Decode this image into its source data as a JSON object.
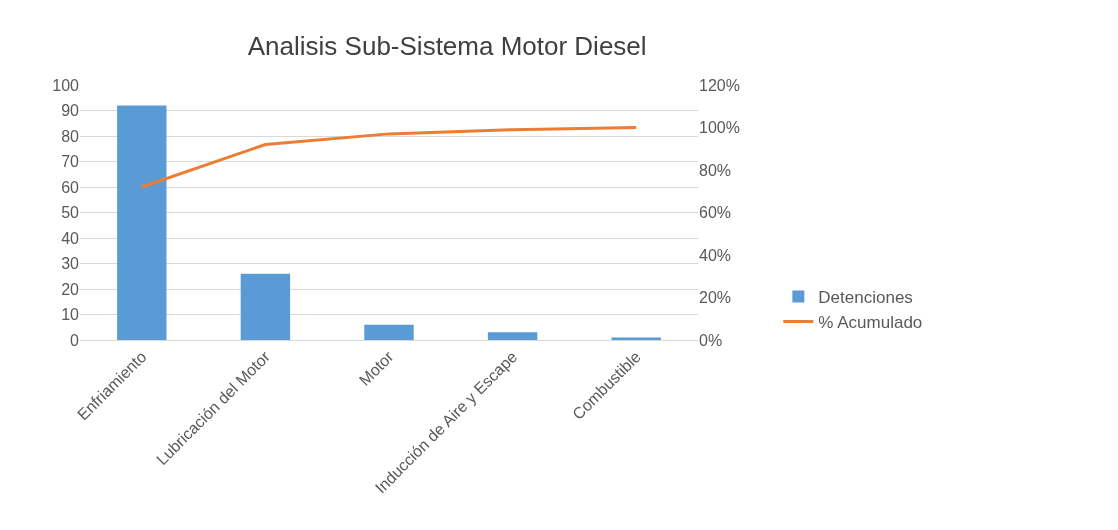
{
  "chart_data": {
    "type": "bar",
    "title": "Analisis Sub-Sistema Motor Diesel",
    "categories": [
      "Enfriamiento",
      "Lubricación del Motor",
      "Motor",
      "Inducción de Aire y Escape",
      "Combustible"
    ],
    "series": [
      {
        "name": "Detenciones",
        "color": "#5b9bd5",
        "values": [
          92,
          26,
          6,
          3,
          1
        ]
      },
      {
        "name": "% Acumulado",
        "type": "line",
        "axis": "y2",
        "color": "#ed7d31",
        "values": [
          72,
          92,
          97,
          99,
          100
        ]
      }
    ],
    "ylim": [
      0,
      100
    ],
    "yticks": [
      0,
      10,
      20,
      30,
      40,
      50,
      60,
      70,
      80,
      90,
      100
    ],
    "y2lim": [
      0,
      120
    ],
    "y2ticks": [
      {
        "value": 0,
        "label": "0%"
      },
      {
        "value": 20,
        "label": "20%"
      },
      {
        "value": 40,
        "label": "40%"
      },
      {
        "value": 60,
        "label": "60%"
      },
      {
        "value": 80,
        "label": "80%"
      },
      {
        "value": 100,
        "label": "100%"
      },
      {
        "value": 120,
        "label": "120%"
      }
    ],
    "grid": "y",
    "legend": "right",
    "marker": "none"
  }
}
